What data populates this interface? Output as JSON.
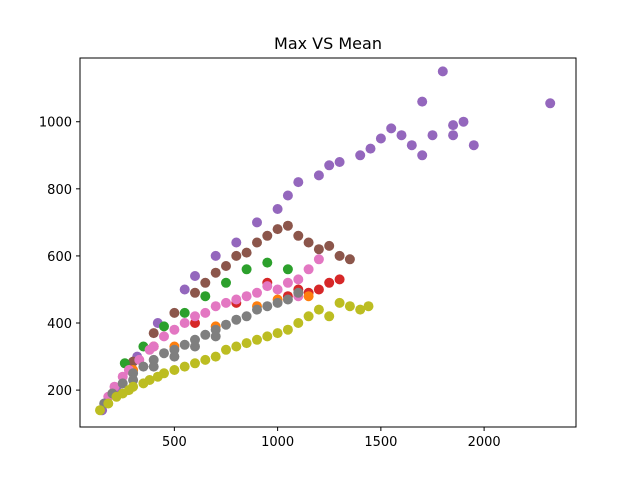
{
  "chart_data": {
    "type": "scatter",
    "title": "Max VS Mean",
    "xlabel": "",
    "ylabel": "",
    "xlim": [
      43,
      2445
    ],
    "ylim": [
      90,
      1190
    ],
    "x_ticks": [
      500,
      1000,
      1500,
      2000
    ],
    "y_ticks": [
      200,
      400,
      600,
      800,
      1000
    ],
    "grid": false,
    "legend": "none",
    "series": [
      {
        "color": "#9467bd",
        "values": [
          [
            150,
            140
          ],
          [
            220,
            205
          ],
          [
            320,
            300
          ],
          [
            420,
            400
          ],
          [
            550,
            500
          ],
          [
            700,
            600
          ],
          [
            900,
            700
          ],
          [
            1050,
            780
          ],
          [
            1200,
            840
          ],
          [
            1300,
            880
          ],
          [
            1400,
            900
          ],
          [
            1500,
            950
          ],
          [
            1550,
            980
          ],
          [
            1600,
            960
          ],
          [
            1650,
            930
          ],
          [
            1700,
            1060
          ],
          [
            1750,
            960
          ],
          [
            1800,
            1150
          ],
          [
            1850,
            990
          ],
          [
            1900,
            1000
          ],
          [
            1950,
            930
          ],
          [
            2320,
            1055
          ],
          [
            1100,
            820
          ],
          [
            1250,
            870
          ],
          [
            1450,
            920
          ],
          [
            1700,
            900
          ],
          [
            1850,
            960
          ],
          [
            1000,
            740
          ],
          [
            800,
            640
          ],
          [
            600,
            540
          ]
        ]
      },
      {
        "color": "#8c564b",
        "values": [
          [
            200,
            190
          ],
          [
            300,
            285
          ],
          [
            400,
            370
          ],
          [
            500,
            430
          ],
          [
            600,
            490
          ],
          [
            700,
            550
          ],
          [
            800,
            600
          ],
          [
            900,
            640
          ],
          [
            950,
            660
          ],
          [
            1000,
            680
          ],
          [
            1100,
            660
          ],
          [
            1150,
            640
          ],
          [
            1250,
            630
          ],
          [
            1300,
            600
          ],
          [
            1350,
            590
          ],
          [
            1200,
            620
          ],
          [
            1050,
            690
          ],
          [
            850,
            610
          ],
          [
            750,
            570
          ],
          [
            650,
            520
          ]
        ]
      },
      {
        "color": "#2ca02c",
        "values": [
          [
            260,
            280
          ],
          [
            350,
            330
          ],
          [
            450,
            390
          ],
          [
            550,
            430
          ],
          [
            650,
            480
          ],
          [
            750,
            520
          ],
          [
            850,
            560
          ],
          [
            950,
            580
          ],
          [
            1050,
            560
          ]
        ]
      },
      {
        "color": "#d62728",
        "values": [
          [
            400,
            330
          ],
          [
            600,
            400
          ],
          [
            800,
            460
          ],
          [
            950,
            520
          ],
          [
            1100,
            500
          ],
          [
            1200,
            500
          ],
          [
            1250,
            520
          ],
          [
            1300,
            530
          ],
          [
            1150,
            490
          ],
          [
            1050,
            480
          ]
        ]
      },
      {
        "color": "#ff7f0e",
        "values": [
          [
            300,
            260
          ],
          [
            500,
            330
          ],
          [
            700,
            390
          ],
          [
            900,
            450
          ],
          [
            1000,
            470
          ],
          [
            1150,
            480
          ]
        ]
      },
      {
        "color": "#e377c2",
        "values": [
          [
            180,
            180
          ],
          [
            250,
            240
          ],
          [
            330,
            290
          ],
          [
            400,
            330
          ],
          [
            500,
            380
          ],
          [
            600,
            420
          ],
          [
            700,
            450
          ],
          [
            800,
            470
          ],
          [
            900,
            490
          ],
          [
            1000,
            500
          ],
          [
            1100,
            530
          ],
          [
            1150,
            560
          ],
          [
            1200,
            590
          ],
          [
            1100,
            480
          ],
          [
            1050,
            520
          ],
          [
            950,
            510
          ],
          [
            850,
            480
          ],
          [
            750,
            460
          ],
          [
            650,
            430
          ],
          [
            550,
            400
          ],
          [
            450,
            360
          ],
          [
            380,
            320
          ],
          [
            280,
            260
          ],
          [
            210,
            210
          ]
        ]
      },
      {
        "color": "#7f7f7f",
        "values": [
          [
            160,
            160
          ],
          [
            200,
            190
          ],
          [
            250,
            220
          ],
          [
            300,
            250
          ],
          [
            350,
            270
          ],
          [
            400,
            290
          ],
          [
            450,
            310
          ],
          [
            500,
            320
          ],
          [
            550,
            335
          ],
          [
            600,
            350
          ],
          [
            650,
            365
          ],
          [
            700,
            380
          ],
          [
            750,
            395
          ],
          [
            800,
            410
          ],
          [
            850,
            420
          ],
          [
            900,
            440
          ],
          [
            950,
            450
          ],
          [
            1000,
            460
          ],
          [
            1050,
            470
          ],
          [
            1100,
            490
          ],
          [
            700,
            360
          ],
          [
            600,
            330
          ],
          [
            500,
            300
          ],
          [
            400,
            270
          ],
          [
            300,
            230
          ]
        ]
      },
      {
        "color": "#bcbd22",
        "values": [
          [
            140,
            140
          ],
          [
            180,
            160
          ],
          [
            220,
            180
          ],
          [
            280,
            200
          ],
          [
            350,
            220
          ],
          [
            420,
            240
          ],
          [
            500,
            260
          ],
          [
            600,
            280
          ],
          [
            700,
            300
          ],
          [
            800,
            330
          ],
          [
            900,
            350
          ],
          [
            1000,
            370
          ],
          [
            1100,
            400
          ],
          [
            1150,
            420
          ],
          [
            1200,
            440
          ],
          [
            1250,
            420
          ],
          [
            1300,
            460
          ],
          [
            1350,
            450
          ],
          [
            1400,
            440
          ],
          [
            1440,
            450
          ],
          [
            1050,
            380
          ],
          [
            950,
            360
          ],
          [
            850,
            340
          ],
          [
            750,
            320
          ],
          [
            650,
            290
          ],
          [
            550,
            270
          ],
          [
            450,
            250
          ],
          [
            380,
            230
          ],
          [
            300,
            210
          ],
          [
            250,
            190
          ]
        ]
      }
    ]
  }
}
